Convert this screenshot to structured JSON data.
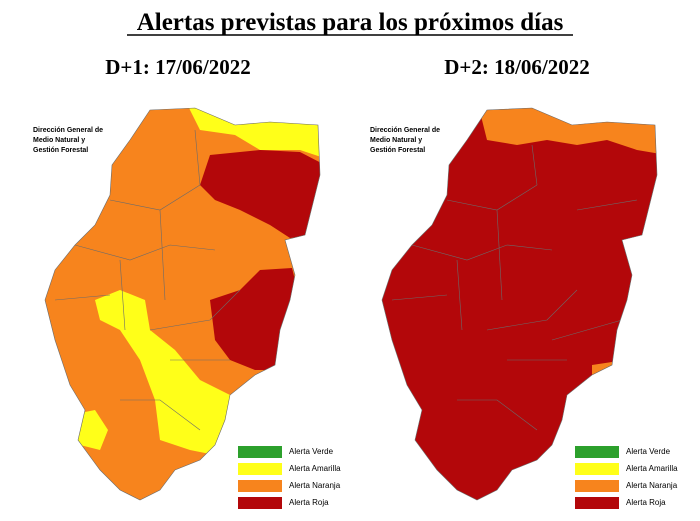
{
  "header": {
    "title": "Alertas previstas para los próximos días"
  },
  "maps": [
    {
      "heading": "D+1: 17/06/2022",
      "agency": [
        "Dirección General de",
        "Medio Natural y",
        "Gestión Forestal"
      ],
      "legend": [
        "Alerta Verde",
        "Alerta Amarilla",
        "Alerta Naranja",
        "Alerta Roja"
      ]
    },
    {
      "heading": "D+2: 18/06/2022",
      "agency": [
        "Dirección General de",
        "Medio Natural y",
        "Gestión Forestal"
      ],
      "legend": [
        "Alerta Verde",
        "Alerta Amarilla",
        "Alerta Naranja",
        "Alerta Roja"
      ]
    }
  ]
}
